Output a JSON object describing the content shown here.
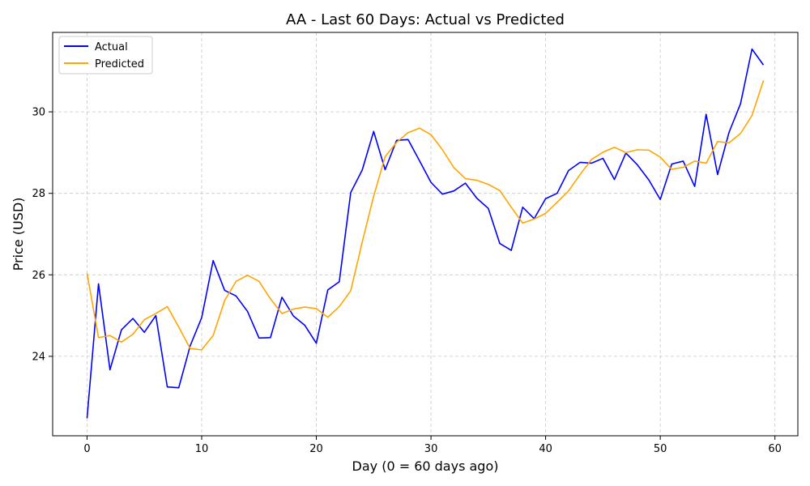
{
  "chart_data": {
    "type": "line",
    "title": "AA - Last 60 Days: Actual vs Predicted",
    "xlabel": "Day (0 = 60 days ago)",
    "ylabel": "Price (USD)",
    "xlim": [
      -3,
      62
    ],
    "ylim": [
      22.05,
      31.95
    ],
    "xticks": [
      0,
      10,
      20,
      30,
      40,
      50,
      60
    ],
    "yticks": [
      24,
      26,
      28,
      30
    ],
    "grid": true,
    "legend_position": "top-left",
    "x": [
      0,
      1,
      2,
      3,
      4,
      5,
      6,
      7,
      8,
      9,
      10,
      11,
      12,
      13,
      14,
      15,
      16,
      17,
      18,
      19,
      20,
      21,
      22,
      23,
      24,
      25,
      26,
      27,
      28,
      29,
      30,
      31,
      32,
      33,
      34,
      35,
      36,
      37,
      38,
      39,
      40,
      41,
      42,
      43,
      44,
      45,
      46,
      47,
      48,
      49,
      50,
      51,
      52,
      53,
      54,
      55,
      56,
      57,
      58,
      59
    ],
    "series": [
      {
        "name": "Actual",
        "color": "#0000ff",
        "values": [
          22.48,
          25.78,
          23.67,
          24.65,
          24.93,
          24.59,
          25.0,
          23.25,
          23.23,
          24.26,
          24.95,
          26.35,
          25.62,
          25.48,
          25.1,
          24.45,
          24.46,
          25.45,
          24.99,
          24.76,
          24.32,
          25.63,
          25.83,
          28.02,
          28.57,
          29.52,
          28.58,
          29.3,
          29.32,
          28.8,
          28.27,
          27.98,
          28.06,
          28.25,
          27.88,
          27.63,
          26.77,
          26.6,
          27.66,
          27.38,
          27.87,
          28.0,
          28.56,
          28.76,
          28.74,
          28.86,
          28.34,
          28.99,
          28.7,
          28.33,
          27.85,
          28.72,
          28.79,
          28.17,
          29.94,
          28.46,
          29.5,
          30.2,
          31.54,
          31.15
        ]
      },
      {
        "name": "Predicted",
        "color": "#ffa500",
        "values": [
          26.04,
          24.46,
          24.51,
          24.35,
          24.54,
          24.9,
          25.05,
          25.22,
          24.72,
          24.19,
          24.16,
          24.51,
          25.37,
          25.84,
          25.99,
          25.84,
          25.41,
          25.05,
          25.16,
          25.21,
          25.17,
          24.96,
          25.22,
          25.61,
          26.8,
          27.93,
          28.9,
          29.25,
          29.49,
          29.6,
          29.44,
          29.07,
          28.63,
          28.36,
          28.32,
          28.22,
          28.07,
          27.66,
          27.27,
          27.37,
          27.51,
          27.78,
          28.06,
          28.46,
          28.83,
          29.01,
          29.13,
          29.0,
          29.07,
          29.06,
          28.89,
          28.59,
          28.64,
          28.79,
          28.74,
          29.27,
          29.24,
          29.47,
          29.91,
          30.77
        ]
      }
    ]
  }
}
